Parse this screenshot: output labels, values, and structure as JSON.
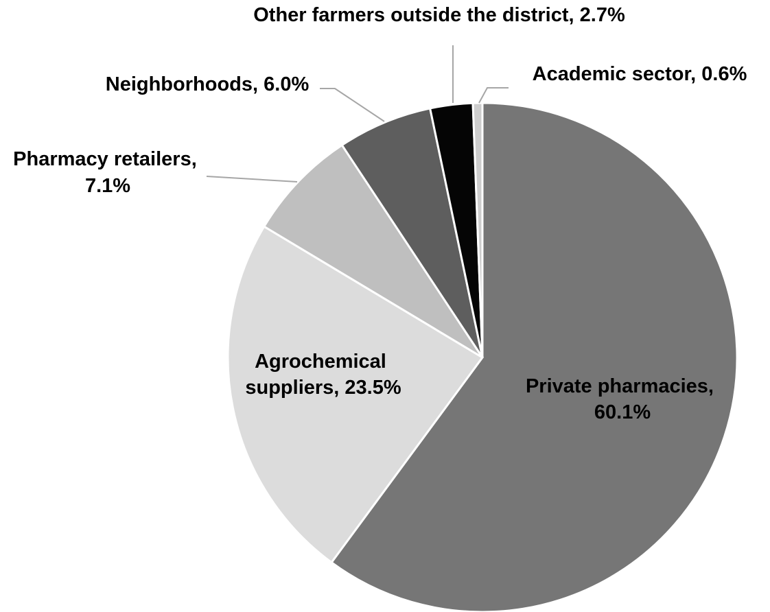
{
  "chart_data": {
    "type": "pie",
    "title": "",
    "colors_note_free": true,
    "slices": [
      {
        "label": "Private pharmacies",
        "value": 60.1,
        "value_text": "60.1%",
        "color": "#767676"
      },
      {
        "label": "Agrochemical suppliers",
        "value": 23.5,
        "value_text": "23.5%",
        "color": "#dcdcdc"
      },
      {
        "label": "Pharmacy retailers",
        "value": 7.1,
        "value_text": "7.1%",
        "color": "#bfbfbf"
      },
      {
        "label": "Neighborhoods",
        "value": 6.0,
        "value_text": "6.0%",
        "color": "#5e5e5e"
      },
      {
        "label": "Other farmers outside the district",
        "value": 2.7,
        "value_text": "2.7%",
        "color": "#050505"
      },
      {
        "label": "Academic sector",
        "value": 0.6,
        "value_text": "0.6%",
        "color": "#cdcdcd"
      }
    ],
    "legend": "none",
    "data_labels": "category name and percentage"
  }
}
